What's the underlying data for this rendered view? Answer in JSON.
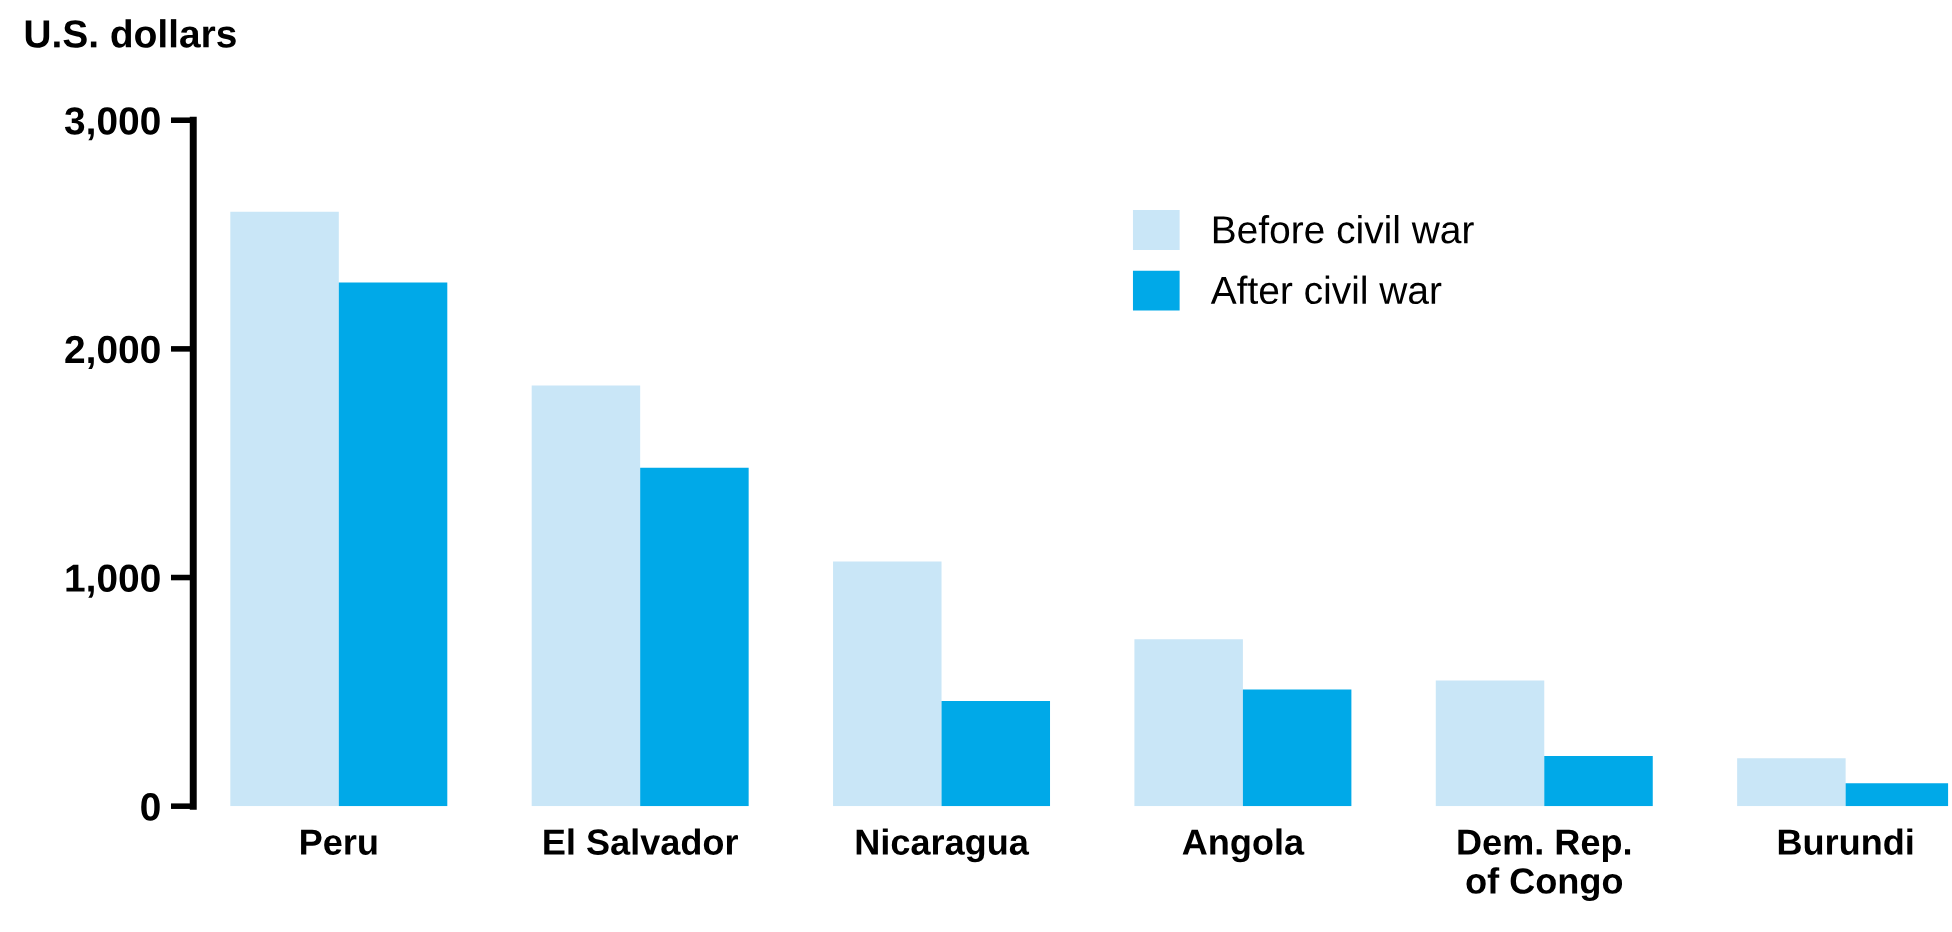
{
  "chart_data": {
    "type": "bar",
    "ylabel": "U.S. dollars",
    "categories": [
      "Peru",
      "El Salvador",
      "Nicaragua",
      "Angola",
      "Dem. Rep.\nof Congo",
      "Burundi"
    ],
    "series": [
      {
        "name": "Before civil war",
        "color": "#c9e6f7",
        "values": [
          2600,
          1840,
          1070,
          730,
          550,
          210
        ]
      },
      {
        "name": "After civil war",
        "color": "#00a9e8",
        "values": [
          2290,
          1480,
          460,
          510,
          220,
          100
        ]
      }
    ],
    "ylim": [
      0,
      3000
    ],
    "yticks": [
      {
        "value": 0,
        "label": "0"
      },
      {
        "value": 1000,
        "label": "1,000"
      },
      {
        "value": 2000,
        "label": "2,000"
      },
      {
        "value": 3000,
        "label": "3,000"
      }
    ],
    "grid": false,
    "legend": "top right"
  }
}
